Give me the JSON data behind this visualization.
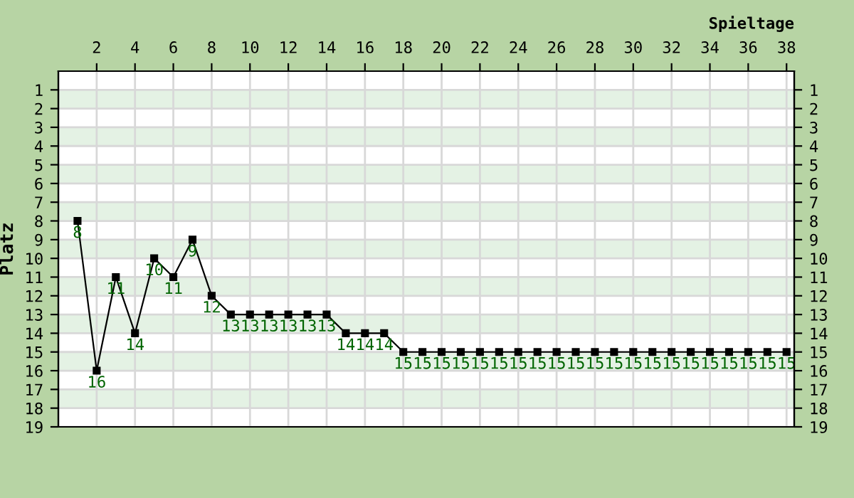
{
  "chart_data": {
    "type": "line",
    "xlabel": "Spieltage",
    "ylabel": "Platz",
    "x": [
      1,
      2,
      3,
      4,
      5,
      6,
      7,
      8,
      9,
      10,
      11,
      12,
      13,
      14,
      15,
      16,
      17,
      18,
      19,
      20,
      21,
      22,
      23,
      24,
      25,
      26,
      27,
      28,
      29,
      30,
      31,
      32,
      33,
      34,
      35,
      36,
      37,
      38
    ],
    "series": [
      {
        "color": "#000000",
        "values": [
          8,
          16,
          11,
          14,
          10,
          11,
          9,
          12,
          13,
          13,
          13,
          13,
          13,
          13,
          14,
          14,
          14,
          15,
          15,
          15,
          15,
          15,
          15,
          15,
          15,
          15,
          15,
          15,
          15,
          15,
          15,
          15,
          15,
          15,
          15,
          15,
          15,
          15
        ]
      }
    ],
    "xlim": [
      0,
      38.4
    ],
    "xticks": [
      2,
      4,
      6,
      8,
      10,
      12,
      14,
      16,
      18,
      20,
      22,
      24,
      26,
      28,
      30,
      32,
      34,
      36,
      38
    ],
    "ylim": [
      19,
      0
    ],
    "yticks": [
      1,
      2,
      3,
      4,
      5,
      6,
      7,
      8,
      9,
      10,
      11,
      12,
      13,
      14,
      15,
      16,
      17,
      18,
      19
    ],
    "y2lim": [
      19,
      0
    ],
    "y2ticks": [
      1,
      2,
      3,
      4,
      5,
      6,
      7,
      8,
      9,
      10,
      11,
      12,
      13,
      14,
      15,
      16,
      17,
      18,
      19
    ],
    "bands": [
      {
        "axis": "y",
        "from": 1,
        "to": 2,
        "color": "#e4f2e4"
      },
      {
        "axis": "y",
        "from": 3,
        "to": 4,
        "color": "#e4f2e4"
      },
      {
        "axis": "y",
        "from": 5,
        "to": 6,
        "color": "#e4f2e4"
      },
      {
        "axis": "y",
        "from": 7,
        "to": 8,
        "color": "#e4f2e4"
      },
      {
        "axis": "y",
        "from": 9,
        "to": 10,
        "color": "#e4f2e4"
      },
      {
        "axis": "y",
        "from": 11,
        "to": 12,
        "color": "#e4f2e4"
      },
      {
        "axis": "y",
        "from": 13,
        "to": 14,
        "color": "#e4f2e4"
      },
      {
        "axis": "y",
        "from": 15,
        "to": 16,
        "color": "#e4f2e4"
      },
      {
        "axis": "y",
        "from": 17,
        "to": 18,
        "color": "#e4f2e4"
      }
    ],
    "grid": true,
    "marker": "square",
    "line_style": "solid",
    "data_labels": true,
    "legend": false
  }
}
